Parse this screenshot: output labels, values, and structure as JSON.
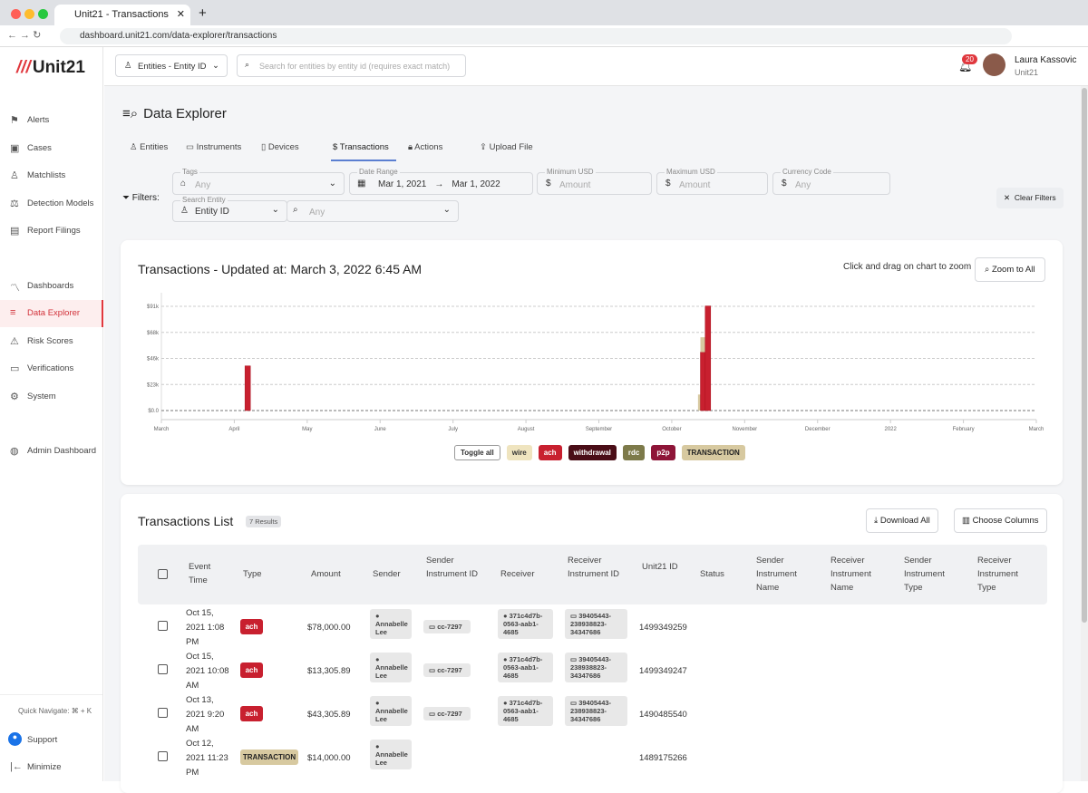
{
  "browser": {
    "tab_title": "Unit21 - Transactions",
    "url": "dashboard.unit21.com/data-explorer/transactions"
  },
  "app": {
    "logo": "Unit21",
    "entity_select": "Entities - Entity ID",
    "search_placeholder": "Search for entities by entity id (requires exact match)",
    "notifications": "20",
    "user_name": "Laura Kassovic",
    "user_org": "Unit21"
  },
  "sidebar": {
    "items": [
      {
        "label": "Alerts",
        "icon": "flag-icon"
      },
      {
        "label": "Cases",
        "icon": "briefcase-icon"
      },
      {
        "label": "Matchlists",
        "icon": "user-plus-icon"
      },
      {
        "label": "Detection Models",
        "icon": "scale-icon"
      },
      {
        "label": "Report Filings",
        "icon": "file-icon"
      },
      {
        "label": "Dashboards",
        "icon": "chart-line-icon"
      },
      {
        "label": "Data Explorer",
        "icon": "search-list-icon"
      },
      {
        "label": "Risk Scores",
        "icon": "warning-icon"
      },
      {
        "label": "Verifications",
        "icon": "id-card-icon"
      },
      {
        "label": "System",
        "icon": "gear-icon"
      },
      {
        "label": "Admin Dashboard",
        "icon": "globe-icon"
      }
    ],
    "quick_navigate": "Quick Navigate: ⌘ + K",
    "support": "Support",
    "minimize": "Minimize"
  },
  "page": {
    "title": "Data Explorer",
    "tabs": [
      "Entities",
      "Instruments",
      "Devices",
      "Transactions",
      "Actions",
      "Upload File"
    ],
    "active_tab": "Transactions"
  },
  "filters": {
    "label": "Filters:",
    "tags_label": "Tags",
    "tags_value": "Any",
    "date_label": "Date Range",
    "date_from": "Mar 1, 2021",
    "date_to": "Mar 1, 2022",
    "min_label": "Minimum USD",
    "min_placeholder": "Amount",
    "max_label": "Maximum USD",
    "max_placeholder": "Amount",
    "currency_label": "Currency Code",
    "currency_placeholder": "Any",
    "search_entity_label": "Search Entity",
    "search_entity_value": "Entity ID",
    "search_entity_input": "Any",
    "clear": "Clear Filters"
  },
  "chart_card": {
    "title": "Transactions - Updated at: March 3, 2022 6:45 AM",
    "hint": "Click and drag on chart to zoom",
    "zoom_all": "Zoom to All"
  },
  "chart_data": {
    "type": "bar",
    "stacked": true,
    "title": "Transactions - Updated at: March 3, 2022 6:45 AM",
    "xlim": [
      "2021-03-01",
      "2022-03-01"
    ],
    "ylim": [
      0,
      91000
    ],
    "y_ticks": [
      "$0.0",
      "$23k",
      "$46k",
      "$68k",
      "$91k"
    ],
    "x_ticks": [
      "March",
      "April",
      "May",
      "June",
      "July",
      "August",
      "September",
      "October",
      "November",
      "December",
      "2022",
      "February",
      "March"
    ],
    "grid": true,
    "legend_placement": "bottom",
    "legend": [
      {
        "name": "Toggle all",
        "color": "#ffffff"
      },
      {
        "name": "wire",
        "color": "#efe4bf"
      },
      {
        "name": "ach",
        "color": "#c8202f"
      },
      {
        "name": "withdrawal",
        "color": "#4a0d17"
      },
      {
        "name": "rdc",
        "color": "#7d7a4a"
      },
      {
        "name": "p2p",
        "color": "#8e1538"
      },
      {
        "name": "TRANSACTION",
        "color": "#d7c9a0"
      }
    ],
    "bars": [
      {
        "date": "2021-04-06",
        "series": "ach",
        "value": 39000
      },
      {
        "date": "2021-10-12",
        "series": "TRANSACTION",
        "value": 14000
      },
      {
        "date": "2021-10-13",
        "series": "ach",
        "value": 51000
      },
      {
        "date": "2021-10-13",
        "series": "TRANSACTION",
        "value": 13000
      },
      {
        "date": "2021-10-15",
        "series": "ach",
        "value": 91305.89
      }
    ]
  },
  "list": {
    "title": "Transactions List",
    "count": "7 Results",
    "download": "Download All",
    "choose_columns": "Choose Columns",
    "columns": [
      "Event Time",
      "Type",
      "Amount",
      "Sender",
      "Sender Instrument ID",
      "Receiver",
      "Receiver Instrument ID",
      "Unit21 ID",
      "Status",
      "Sender Instrument Name",
      "Receiver Instrument Name",
      "Sender Instrument Type",
      "Receiver Instrument Type"
    ],
    "rows": [
      {
        "time": "Oct 15, 2021 1:08 PM",
        "type": "ach",
        "amount": "$78,000.00",
        "sender": "Annabelle Lee",
        "sender_inst": "cc-7297",
        "receiver": "371c4d7b-0563-aab1-4685",
        "receiver_inst": "39405443-238938823-34347686",
        "id": "1499349259"
      },
      {
        "time": "Oct 15, 2021 10:08 AM",
        "type": "ach",
        "amount": "$13,305.89",
        "sender": "Annabelle Lee",
        "sender_inst": "cc-7297",
        "receiver": "371c4d7b-0563-aab1-4685",
        "receiver_inst": "39405443-238938823-34347686",
        "id": "1499349247"
      },
      {
        "time": "Oct 13, 2021 9:20 AM",
        "type": "ach",
        "amount": "$43,305.89",
        "sender": "Annabelle Lee",
        "sender_inst": "cc-7297",
        "receiver": "371c4d7b-0563-aab1-4685",
        "receiver_inst": "39405443-238938823-34347686",
        "id": "1490485540"
      },
      {
        "time": "Oct 12, 2021 11:23 PM",
        "type": "TRANSACTION",
        "amount": "$14,000.00",
        "sender": "Annabelle Lee",
        "sender_inst": "",
        "receiver": "",
        "receiver_inst": "",
        "id": "1489175266"
      }
    ]
  }
}
